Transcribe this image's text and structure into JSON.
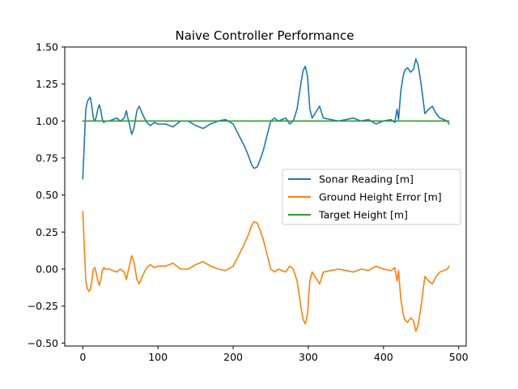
{
  "chart_data": {
    "type": "line",
    "title": "Naive Controller Performance",
    "xlabel": "",
    "ylabel": "",
    "xlim": [
      -24,
      510
    ],
    "ylim": [
      -0.52,
      1.5
    ],
    "x_ticks": [
      0,
      100,
      200,
      300,
      400,
      500
    ],
    "x_tick_labels": [
      "0",
      "100",
      "200",
      "300",
      "400",
      "500"
    ],
    "y_ticks": [
      -0.5,
      -0.25,
      0.0,
      0.25,
      0.5,
      0.75,
      1.0,
      1.25,
      1.5
    ],
    "y_tick_labels": [
      "−0.50",
      "−0.25",
      "0.00",
      "0.25",
      "0.50",
      "0.75",
      "1.00",
      "1.25",
      "1.50"
    ],
    "grid": false,
    "legend_position": "center-right",
    "series": [
      {
        "name": "Sonar Reading [m]",
        "color": "#1f77b4",
        "x": [
          0,
          2,
          4,
          6,
          8,
          10,
          12,
          14,
          16,
          18,
          20,
          22,
          24,
          26,
          28,
          30,
          35,
          40,
          45,
          50,
          55,
          58,
          60,
          62,
          65,
          68,
          72,
          75,
          80,
          85,
          90,
          95,
          100,
          110,
          120,
          130,
          140,
          150,
          160,
          170,
          180,
          190,
          200,
          205,
          210,
          215,
          220,
          225,
          228,
          232,
          236,
          240,
          245,
          250,
          255,
          260,
          265,
          270,
          275,
          280,
          285,
          290,
          293,
          296,
          299,
          302,
          305,
          310,
          315,
          320,
          330,
          340,
          350,
          360,
          370,
          380,
          390,
          400,
          410,
          415,
          418,
          420,
          423,
          426,
          428,
          432,
          436,
          440,
          443,
          446,
          450,
          455,
          460,
          465,
          470,
          475,
          480,
          485,
          487
        ],
        "values": [
          0.61,
          0.85,
          1.08,
          1.13,
          1.15,
          1.16,
          1.1,
          1.02,
          1.0,
          1.03,
          1.08,
          1.11,
          1.07,
          1.01,
          0.99,
          1.0,
          1.0,
          1.01,
          1.02,
          1.0,
          1.02,
          1.07,
          1.02,
          0.98,
          0.91,
          0.95,
          1.07,
          1.1,
          1.04,
          0.99,
          0.97,
          0.99,
          0.98,
          0.98,
          0.96,
          1.0,
          1.0,
          0.97,
          0.95,
          0.98,
          1.0,
          1.01,
          0.98,
          0.93,
          0.88,
          0.83,
          0.77,
          0.7,
          0.68,
          0.69,
          0.74,
          0.8,
          0.9,
          1.0,
          1.02,
          1.0,
          1.01,
          1.02,
          0.98,
          1.0,
          1.08,
          1.25,
          1.34,
          1.37,
          1.3,
          1.08,
          1.02,
          1.06,
          1.1,
          1.02,
          1.01,
          1.0,
          1.01,
          1.02,
          1.0,
          1.01,
          0.98,
          1.0,
          1.01,
          0.99,
          1.08,
          1.01,
          1.2,
          1.3,
          1.34,
          1.36,
          1.33,
          1.35,
          1.42,
          1.38,
          1.25,
          1.05,
          1.08,
          1.1,
          1.05,
          1.02,
          1.01,
          1.0,
          0.98
        ]
      },
      {
        "name": "Ground Height Error [m]",
        "color": "#ff7f0e",
        "x": [
          0,
          2,
          4,
          6,
          8,
          10,
          12,
          14,
          16,
          18,
          20,
          22,
          24,
          26,
          28,
          30,
          35,
          40,
          45,
          50,
          55,
          58,
          60,
          62,
          65,
          68,
          72,
          75,
          80,
          85,
          90,
          95,
          100,
          110,
          120,
          130,
          140,
          150,
          160,
          170,
          180,
          190,
          200,
          205,
          210,
          215,
          220,
          225,
          228,
          232,
          236,
          240,
          245,
          250,
          255,
          260,
          265,
          270,
          275,
          280,
          285,
          290,
          293,
          296,
          299,
          302,
          305,
          310,
          315,
          320,
          330,
          340,
          350,
          360,
          370,
          380,
          390,
          400,
          410,
          415,
          418,
          420,
          423,
          426,
          428,
          432,
          436,
          440,
          443,
          446,
          450,
          455,
          460,
          465,
          470,
          475,
          480,
          485,
          487
        ],
        "values": [
          0.39,
          0.15,
          -0.08,
          -0.13,
          -0.15,
          -0.14,
          -0.08,
          0.0,
          0.01,
          -0.03,
          -0.08,
          -0.11,
          -0.07,
          -0.01,
          0.01,
          0.0,
          0.0,
          -0.01,
          -0.02,
          0.0,
          -0.02,
          -0.07,
          -0.02,
          0.02,
          0.09,
          0.05,
          -0.07,
          -0.1,
          -0.04,
          0.01,
          0.03,
          0.01,
          0.02,
          0.02,
          0.04,
          0.0,
          0.0,
          0.03,
          0.05,
          0.02,
          0.0,
          -0.01,
          0.02,
          0.07,
          0.12,
          0.17,
          0.23,
          0.3,
          0.32,
          0.31,
          0.26,
          0.2,
          0.1,
          0.0,
          -0.02,
          0.0,
          -0.01,
          -0.02,
          0.02,
          0.0,
          -0.08,
          -0.25,
          -0.34,
          -0.37,
          -0.3,
          -0.08,
          -0.02,
          -0.06,
          -0.1,
          -0.02,
          -0.01,
          0.0,
          -0.01,
          -0.02,
          0.0,
          -0.01,
          0.02,
          0.0,
          -0.01,
          0.01,
          -0.08,
          -0.01,
          -0.2,
          -0.3,
          -0.34,
          -0.36,
          -0.33,
          -0.35,
          -0.42,
          -0.38,
          -0.25,
          -0.05,
          -0.08,
          -0.1,
          -0.05,
          -0.02,
          -0.01,
          0.0,
          0.02
        ]
      },
      {
        "name": "Target Height [m]",
        "color": "#2ca02c",
        "x": [
          0,
          487
        ],
        "values": [
          1.0,
          1.0
        ]
      }
    ]
  }
}
